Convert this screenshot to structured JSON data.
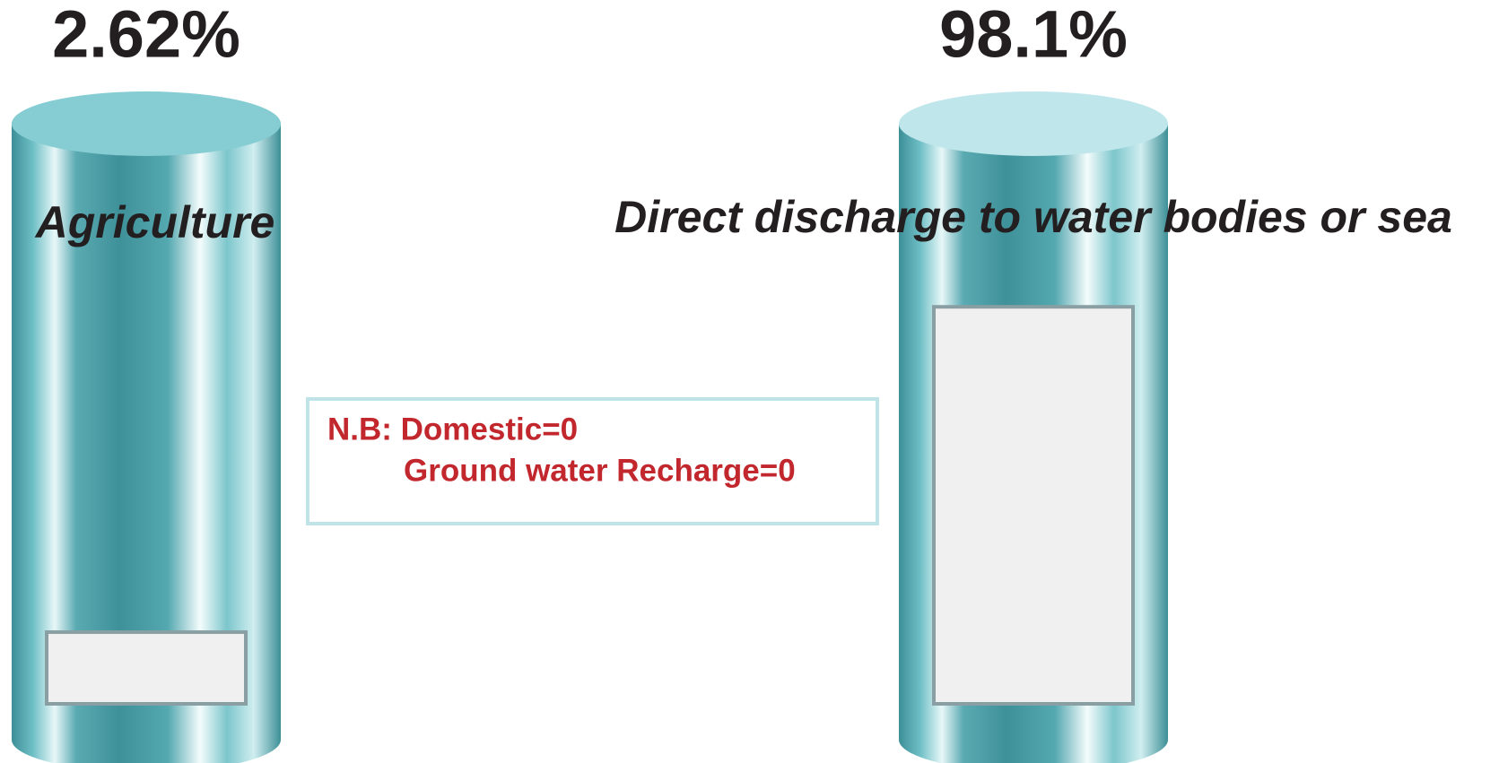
{
  "chart_data": {
    "type": "bar",
    "categories": [
      "Agriculture",
      "Direct discharge to water bodies or sea"
    ],
    "values": [
      2.62,
      98.1
    ],
    "value_labels": [
      "2.62%",
      "98.1%"
    ],
    "color": "#5fb5bd",
    "annotations": [
      "N.B: Domestic=0",
      "Ground water Recharge=0"
    ]
  }
}
